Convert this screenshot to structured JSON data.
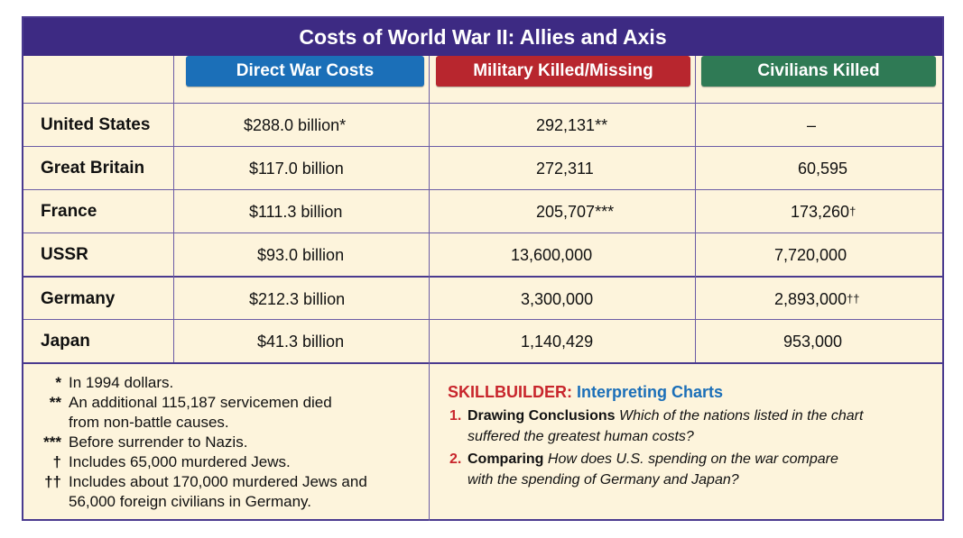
{
  "title": "Costs of World War II: Allies and Axis",
  "columns": [
    {
      "label": "Direct War Costs",
      "color": "#1b6fb8"
    },
    {
      "label": "Military Killed/Missing",
      "color": "#b8262e"
    },
    {
      "label": "Civilians Killed",
      "color": "#2f7a55"
    }
  ],
  "rows": [
    {
      "country": "United States",
      "cost": "$288.0 billion*",
      "military": "292,131**",
      "civilians": "–"
    },
    {
      "country": "Great Britain",
      "cost": "$117.0 billion",
      "military": "272,311",
      "civilians": "60,595"
    },
    {
      "country": "France",
      "cost": "$111.3 billion",
      "military": "205,707***",
      "civilians": "173,260",
      "civ_mark": "†"
    },
    {
      "country": "USSR",
      "cost": "$93.0 billion",
      "military": "13,600,000",
      "civilians": "7,720,000"
    },
    {
      "country": "Germany",
      "cost": "$212.3 billion",
      "military": "3,300,000",
      "civilians": "2,893,000",
      "civ_mark": "††"
    },
    {
      "country": "Japan",
      "cost": "$41.3 billion",
      "military": "1,140,429",
      "civilians": "953,000"
    }
  ],
  "footnotes": [
    {
      "mark": "*",
      "text": "In 1994 dollars."
    },
    {
      "mark": "**",
      "text": "An additional 115,187 servicemen died"
    },
    {
      "mark": "",
      "text": "from non-battle causes."
    },
    {
      "mark": "***",
      "text": "Before surrender to Nazis."
    },
    {
      "mark": "†",
      "text": "Includes 65,000 murdered Jews."
    },
    {
      "mark": "††",
      "text": "Includes about 170,000 murdered Jews and"
    },
    {
      "mark": "",
      "text": "56,000 foreign civilians in Germany."
    }
  ],
  "skillbuilder": {
    "label": "SKILLBUILDER:",
    "topic": "Interpreting Charts",
    "label_color": "#c8252c",
    "topic_color": "#1b6fb8",
    "questions": [
      {
        "num": "1.",
        "label": "Drawing Conclusions",
        "line1": "Which of the nations listed in the chart",
        "line2": "suffered the greatest human costs?"
      },
      {
        "num": "2.",
        "label": "Comparing",
        "line1": "How does U.S. spending on the war compare",
        "line2": "with the spending of Germany and Japan?"
      }
    ]
  }
}
